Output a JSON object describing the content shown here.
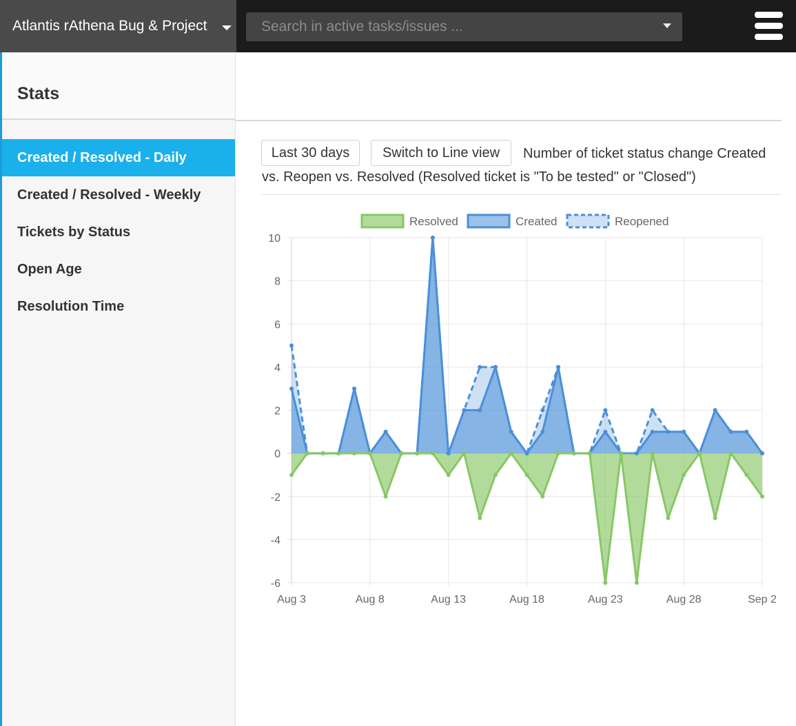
{
  "header": {
    "project_name": "Atlantis rAthena Bug & Project",
    "search_placeholder": "Search in active tasks/issues ..."
  },
  "sidebar": {
    "title": "Stats",
    "items": [
      {
        "label": "Created / Resolved - Daily",
        "active": true
      },
      {
        "label": "Created / Resolved - Weekly",
        "active": false
      },
      {
        "label": "Tickets by Status",
        "active": false
      },
      {
        "label": "Open Age",
        "active": false
      },
      {
        "label": "Resolution Time",
        "active": false
      }
    ]
  },
  "content": {
    "range_button": "Last 30 days",
    "switch_button": "Switch to Line view",
    "description": "Number of ticket status change Created vs. Reopen vs. Resolved (Resolved ticket is \"To be tested\" or \"Closed\")"
  },
  "colors": {
    "accent": "#1ab0eb",
    "resolved": "#88c766",
    "created": "#4a8fd9",
    "reopened": "#4a8fd9"
  },
  "chart_data": {
    "type": "area",
    "legend_position": "top",
    "grid": true,
    "x": [
      "Aug 3",
      "Aug 4",
      "Aug 5",
      "Aug 6",
      "Aug 7",
      "Aug 8",
      "Aug 9",
      "Aug 10",
      "Aug 11",
      "Aug 12",
      "Aug 13",
      "Aug 14",
      "Aug 15",
      "Aug 16",
      "Aug 17",
      "Aug 18",
      "Aug 19",
      "Aug 20",
      "Aug 21",
      "Aug 22",
      "Aug 23",
      "Aug 24",
      "Aug 25",
      "Aug 26",
      "Aug 27",
      "Aug 28",
      "Aug 29",
      "Aug 30",
      "Aug 31",
      "Sep 1",
      "Sep 2"
    ],
    "x_tick_labels": [
      "Aug 3",
      "Aug 8",
      "Aug 13",
      "Aug 18",
      "Aug 23",
      "Aug 28",
      "Sep 2"
    ],
    "y_ticks": [
      10,
      8,
      6,
      4,
      2,
      0,
      -2,
      -4,
      -6
    ],
    "ylim": [
      -6,
      10
    ],
    "series": [
      {
        "name": "Resolved",
        "values": [
          -1,
          0,
          0,
          0,
          0,
          0,
          -2,
          0,
          0,
          0,
          -1,
          0,
          -3,
          -1,
          0,
          -1,
          -2,
          0,
          0,
          0,
          -6,
          0,
          -6,
          0,
          -3,
          -1,
          0,
          -3,
          0,
          -1,
          -2
        ]
      },
      {
        "name": "Created",
        "values": [
          3,
          0,
          0,
          0,
          3,
          0,
          1,
          0,
          0,
          10,
          0,
          2,
          2,
          4,
          1,
          0,
          1,
          4,
          0,
          0,
          1,
          0,
          0,
          1,
          1,
          1,
          0,
          2,
          1,
          1,
          0
        ]
      },
      {
        "name": "Reopened",
        "values": [
          5,
          0,
          0,
          0,
          3,
          0,
          1,
          0,
          0,
          10,
          0,
          2,
          4,
          4,
          1,
          0,
          2,
          4,
          0,
          0,
          2,
          0,
          0,
          2,
          1,
          1,
          0,
          2,
          1,
          1,
          0
        ]
      }
    ]
  }
}
